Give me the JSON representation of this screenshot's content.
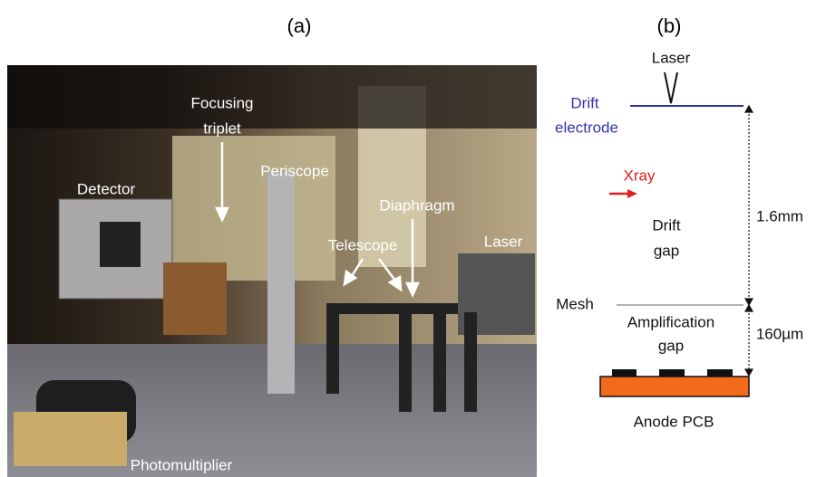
{
  "panel_a": {
    "label": "(a)",
    "labels": {
      "focusing": [
        "Focusing",
        "triplet"
      ],
      "periscope": "Periscope",
      "detector": "Detector",
      "diaphragm": "Diaphragm",
      "telescope": "Telescope",
      "laser": "Laser",
      "photomultiplier": "Photomultiplier"
    }
  },
  "panel_b": {
    "label": "(b)",
    "laser": "Laser",
    "drift_electrode": [
      "Drift",
      "electrode"
    ],
    "xray": "Xray",
    "drift_gap": [
      "Drift",
      "gap"
    ],
    "drift_size": "1.6mm",
    "mesh": "Mesh",
    "amplification_gap": [
      "Amplification",
      "gap"
    ],
    "amplification_size": "160µm",
    "anode": "Anode PCB"
  }
}
